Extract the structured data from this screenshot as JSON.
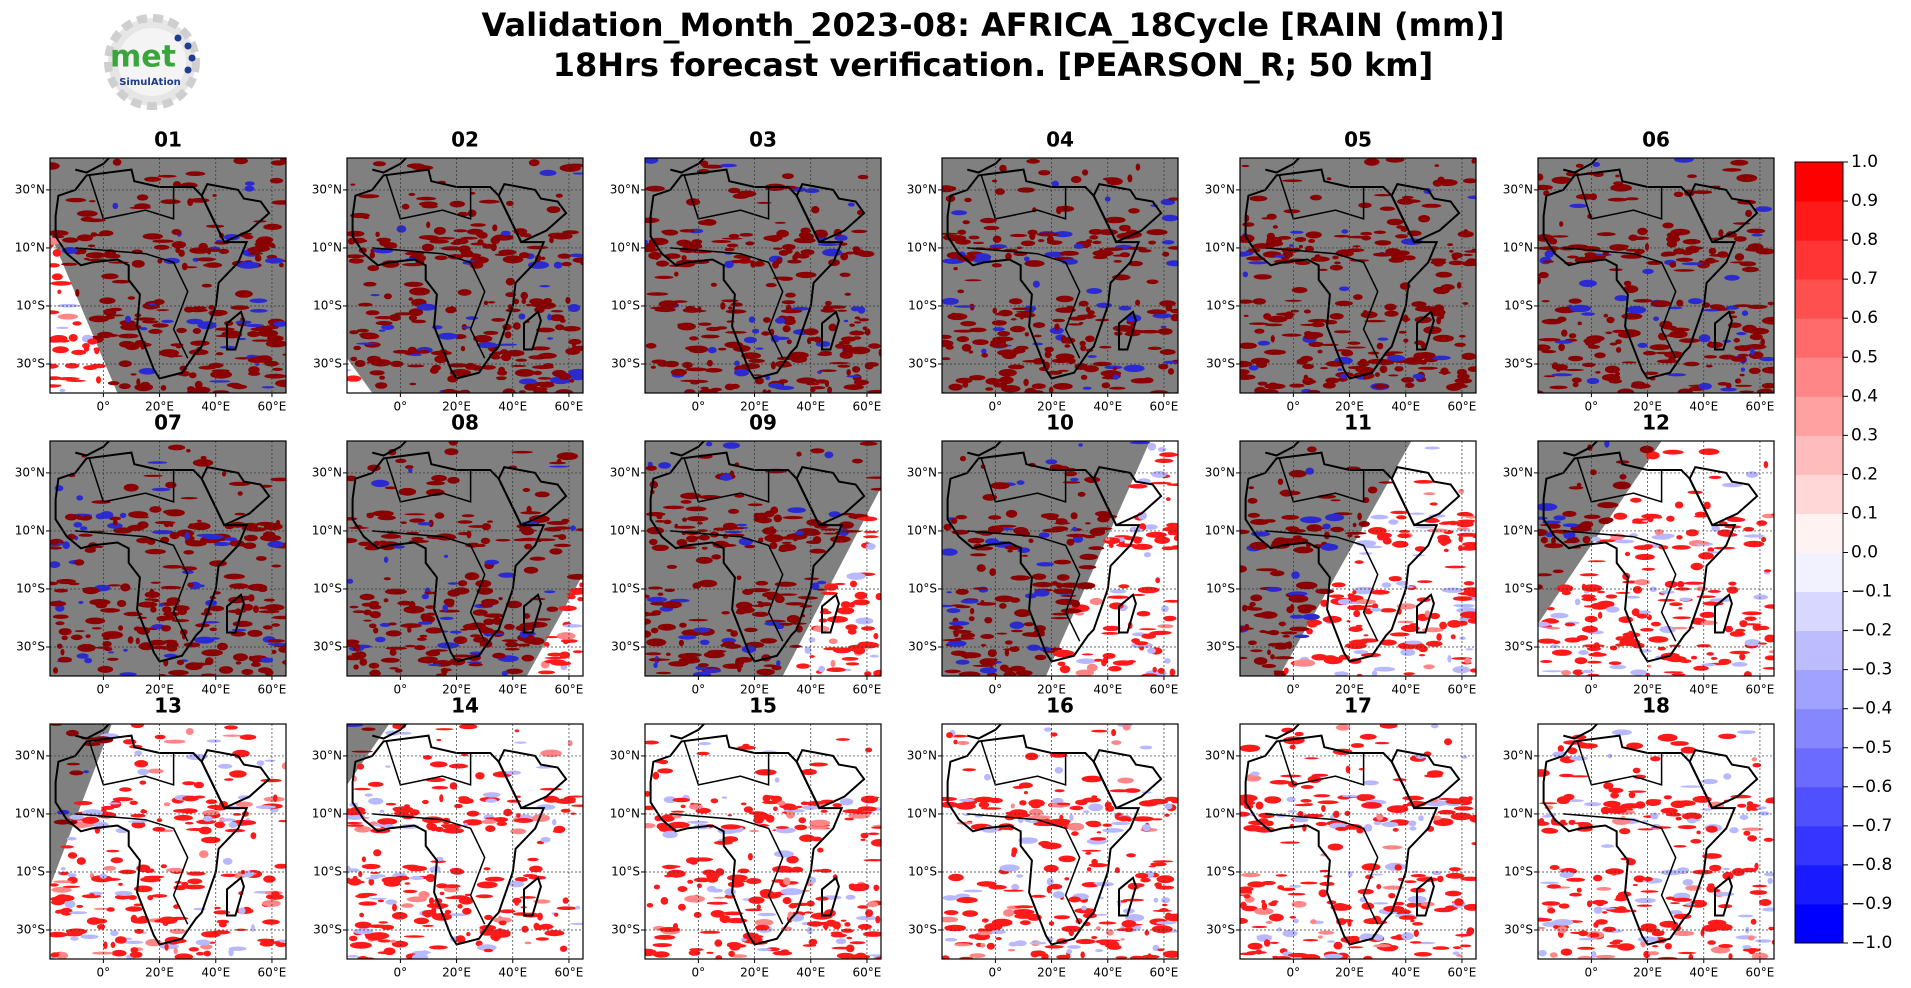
{
  "title_lines": [
    "Validation_Month_2023-08: AFRICA_18Cycle [RAIN (mm)]",
    "18Hrs forecast verification.  [PEARSON_R; 50 km]"
  ],
  "logo": {
    "text": "met",
    "subtext": "SimulAtion"
  },
  "panel_titles": [
    "01",
    "02",
    "03",
    "04",
    "05",
    "06",
    "07",
    "08",
    "09",
    "10",
    "11",
    "12",
    "13",
    "14",
    "15",
    "16",
    "17",
    "18"
  ],
  "lonlim": [
    -19,
    65
  ],
  "latlim": [
    -40,
    41
  ],
  "lat_ticks": [
    {
      "value": 30,
      "label": "30°N"
    },
    {
      "value": 10,
      "label": "10°N"
    },
    {
      "value": -10,
      "label": "10°S"
    },
    {
      "value": -30,
      "label": "30°S"
    }
  ],
  "lon_ticks": [
    {
      "value": 0,
      "label": "0°"
    },
    {
      "value": 20,
      "label": "20°E"
    },
    {
      "value": 40,
      "label": "40°E"
    },
    {
      "value": 60,
      "label": "60°E"
    }
  ],
  "colorbar": {
    "lim": [
      -1,
      1
    ],
    "ticks": [
      {
        "value": -1,
        "label": "−1.0"
      },
      {
        "value": -0.9,
        "label": "−0.9"
      },
      {
        "value": -0.8,
        "label": "−0.8"
      },
      {
        "value": -0.7,
        "label": "−0.7"
      },
      {
        "value": -0.6,
        "label": "−0.6"
      },
      {
        "value": -0.5,
        "label": "−0.5"
      },
      {
        "value": -0.4,
        "label": "−0.4"
      },
      {
        "value": -0.3,
        "label": "−0.3"
      },
      {
        "value": -0.2,
        "label": "−0.2"
      },
      {
        "value": -0.1,
        "label": "−0.1"
      },
      {
        "value": 0,
        "label": "0.0"
      },
      0.1,
      0.2,
      0.3,
      0.4,
      0.5,
      0.6,
      0.7,
      0.8,
      0.9,
      {
        "value": 1,
        "label": "1.0"
      }
    ],
    "colors": [
      "#0000ff",
      "#1a1aff",
      "#3535ff",
      "#5050ff",
      "#6b6bff",
      "#8686ff",
      "#a1a1ff",
      "#bcbcff",
      "#d7d7ff",
      "#f2f2ff",
      "#fff2f2",
      "#ffd7d7",
      "#ffbcbc",
      "#ffa1a1",
      "#ff8686",
      "#ff6b6b",
      "#ff5050",
      "#ff3535",
      "#ff1a1a",
      "#ff0000"
    ]
  }
}
